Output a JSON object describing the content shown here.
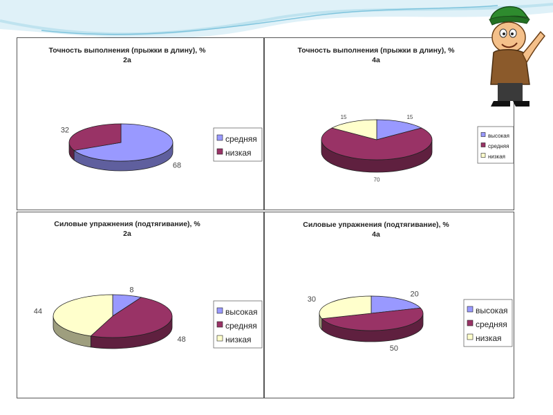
{
  "colors": {
    "background_top": "#dff1f8",
    "wave_light": "#bfe3ef",
    "wave_accent": "#7fc4dd",
    "panel_border": "#555555"
  },
  "chart_data": [
    {
      "type": "pie",
      "title": "Точность выполнения (прыжки в длину), %",
      "subtitle": "2а",
      "legend_position": "right",
      "categories": [
        "средняя",
        "низкая"
      ],
      "values": [
        68,
        32
      ],
      "labels": [
        "68",
        "32"
      ],
      "colors": [
        "#9999ff",
        "#993366"
      ]
    },
    {
      "type": "pie",
      "title": "Точность выполнения (прыжки в длину), %",
      "subtitle": "4а",
      "legend_position": "right",
      "categories": [
        "высокая",
        "средняя",
        "низкая"
      ],
      "values": [
        15,
        70,
        15
      ],
      "labels": [
        "15",
        "70",
        "15"
      ],
      "colors": [
        "#9999ff",
        "#993366",
        "#ffffcc"
      ]
    },
    {
      "type": "pie",
      "title": "Силовые упражнения  (подтягивание), %",
      "subtitle": "2а",
      "legend_position": "right",
      "categories": [
        "высокая",
        "средняя",
        "низкая"
      ],
      "values": [
        8,
        48,
        44
      ],
      "labels": [
        "8",
        "48",
        "44"
      ],
      "colors": [
        "#9999ff",
        "#993366",
        "#ffffcc"
      ]
    },
    {
      "type": "pie",
      "title": "Силовые упражнения (подтягивание),  %",
      "subtitle": "4а",
      "legend_position": "right",
      "categories": [
        "высокая",
        "средняя",
        "низкая"
      ],
      "values": [
        20,
        50,
        30
      ],
      "labels": [
        "20",
        "50",
        "30"
      ],
      "colors": [
        "#9999ff",
        "#993366",
        "#ffffcc"
      ]
    }
  ]
}
